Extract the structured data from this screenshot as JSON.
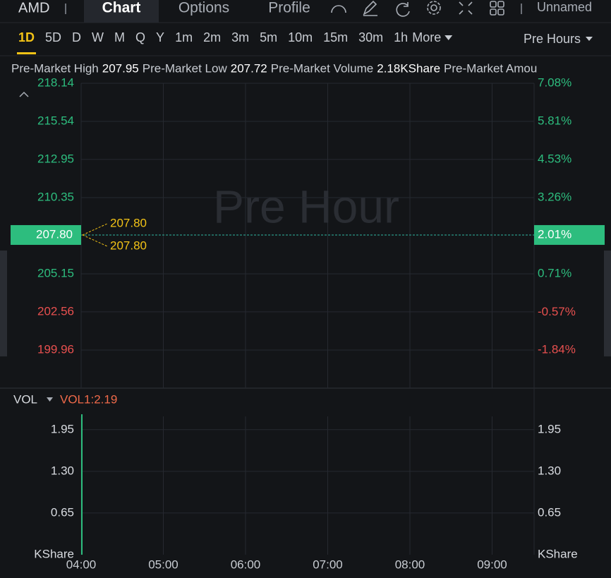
{
  "nav": {
    "symbol": "AMD",
    "tabs": [
      "Chart",
      "Options",
      "Profile"
    ],
    "active_tab": 0,
    "layout_name": "Unnamed"
  },
  "periods": {
    "items": [
      "1D",
      "5D",
      "D",
      "W",
      "M",
      "Q",
      "Y",
      "1m",
      "2m",
      "3m",
      "5m",
      "10m",
      "15m",
      "30m",
      "1h"
    ],
    "active": 0,
    "more": "More",
    "session": "Pre Hours"
  },
  "stats": [
    {
      "label": "Pre-Market High",
      "value": "207.95"
    },
    {
      "label": "Pre-Market Low",
      "value": "207.72"
    },
    {
      "label": "Pre-Market Volume",
      "value": "2.18KShare"
    },
    {
      "label": "Pre-Market Amou"
    }
  ],
  "chart_data": [
    {
      "type": "line",
      "watermark": "Pre Hour",
      "ylim": [
        197.36,
        218.14
      ],
      "yticks": [
        218.14,
        215.54,
        212.95,
        210.35,
        205.15,
        202.56,
        199.96
      ],
      "y2lim": [
        -3.11,
        7.08
      ],
      "y2ticks": [
        {
          "value": 7.08,
          "label": "7.08%"
        },
        {
          "value": 5.81,
          "label": "5.81%"
        },
        {
          "value": 4.53,
          "label": "4.53%"
        },
        {
          "value": 3.26,
          "label": "3.26%"
        },
        {
          "value": 0.71,
          "label": "0.71%"
        },
        {
          "value": -0.57,
          "label": "-0.57%"
        },
        {
          "value": -1.84,
          "label": "-1.84%"
        }
      ],
      "last": {
        "value": 207.8,
        "label": "207.80",
        "change": {
          "value": 2.01,
          "label": "2.01%"
        }
      },
      "annotations": [
        {
          "value": 207.8,
          "label": "207.80"
        },
        {
          "value": 207.8,
          "label": "207.80"
        }
      ],
      "up_color": "#2dbd7e",
      "down_color": "#e8504f",
      "grid": true
    },
    {
      "type": "bar",
      "title": "VOL",
      "indicator": "VOL1:2.19",
      "categories": [
        "04:00",
        "05:00",
        "06:00",
        "07:00",
        "08:00",
        "09:00"
      ],
      "values": [
        2.19,
        null,
        null,
        null,
        null,
        null
      ],
      "color": "#2dbd7e",
      "ylim": [
        0,
        2.3
      ],
      "yticks": [
        {
          "value": 1.95,
          "label": "1.95"
        },
        {
          "value": 1.3,
          "label": "1.30"
        },
        {
          "value": 0.65,
          "label": "0.65"
        },
        {
          "value": 0,
          "label": "KShare"
        }
      ],
      "grid": true
    }
  ]
}
